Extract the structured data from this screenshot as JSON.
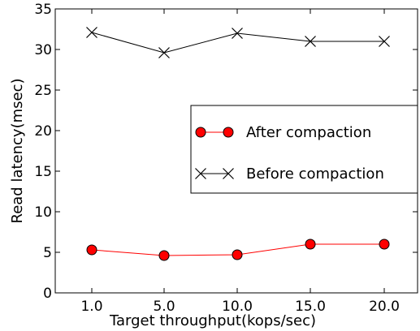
{
  "chart_data": {
    "type": "line",
    "categories": [
      "1.0",
      "5.0",
      "10.0",
      "15.0",
      "20.0"
    ],
    "xlabel": "Target throughput(kops/sec)",
    "ylabel": "Read latency(msec)",
    "ylim": [
      0,
      35
    ],
    "yticks": [
      "0",
      "5",
      "10",
      "15",
      "20",
      "25",
      "30",
      "35"
    ],
    "grid": false,
    "legend_position": "center-right",
    "series": [
      {
        "name": "After compaction",
        "values": [
          5.3,
          4.6,
          4.7,
          6.0,
          6.0
        ],
        "color": "#ff0000",
        "marker": "circle"
      },
      {
        "name": "Before compaction",
        "values": [
          32.1,
          29.6,
          32.0,
          31.0,
          31.0
        ],
        "color": "#000000",
        "marker": "x"
      }
    ]
  }
}
